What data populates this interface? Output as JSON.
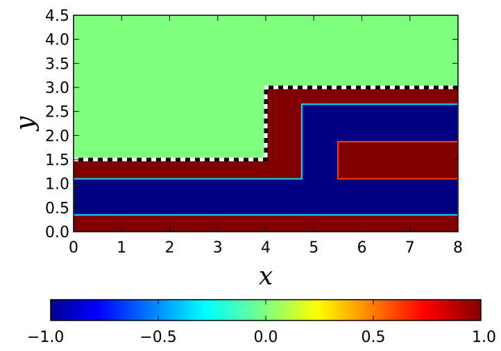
{
  "chart_data": {
    "type": "heatmap",
    "title": "",
    "xlabel": "x",
    "ylabel": "y",
    "xlim": [
      0,
      8
    ],
    "ylim": [
      0,
      4.5
    ],
    "xticks": [
      0,
      1,
      2,
      3,
      4,
      5,
      6,
      7,
      8
    ],
    "yticks": [
      0.0,
      0.5,
      1.0,
      1.5,
      2.0,
      2.5,
      3.0,
      3.5,
      4.0,
      4.5
    ],
    "xtick_labels": [
      "0",
      "1",
      "2",
      "3",
      "4",
      "5",
      "6",
      "7",
      "8"
    ],
    "ytick_labels": [
      "0.0",
      "0.5",
      "1.0",
      "1.5",
      "2.0",
      "2.5",
      "3.0",
      "3.5",
      "4.0",
      "4.5"
    ],
    "colormap": "jet",
    "grid": false,
    "regions": [
      {
        "value": 0.0,
        "description": "background field",
        "polygon": [
          [
            0,
            0
          ],
          [
            8,
            0
          ],
          [
            8,
            4.5
          ],
          [
            0,
            4.5
          ]
        ]
      },
      {
        "value": 1.0,
        "description": "stepped layer",
        "polygon": [
          [
            0,
            0
          ],
          [
            8,
            0
          ],
          [
            8,
            3.0
          ],
          [
            4.0,
            3.0
          ],
          [
            4.0,
            1.5
          ],
          [
            0,
            1.5
          ]
        ]
      },
      {
        "value": -1.0,
        "description": "channel",
        "polygon": [
          [
            0,
            0.35
          ],
          [
            8,
            0.35
          ],
          [
            8,
            2.65
          ],
          [
            4.75,
            2.65
          ],
          [
            4.75,
            1.1
          ],
          [
            0,
            1.1
          ]
        ]
      },
      {
        "value": 1.0,
        "description": "inner bar",
        "polygon": [
          [
            5.5,
            1.1
          ],
          [
            8,
            1.1
          ],
          [
            8,
            1.87
          ],
          [
            5.5,
            1.87
          ]
        ]
      }
    ],
    "dashed_boundary": {
      "color": "#ffffff",
      "points": [
        [
          0,
          1.5
        ],
        [
          4.0,
          1.5
        ],
        [
          4.0,
          3.0
        ],
        [
          8,
          3.0
        ]
      ]
    },
    "colorbar": {
      "orientation": "horizontal",
      "range": [
        -1.0,
        1.0
      ],
      "ticks": [
        -1.0,
        -0.5,
        0.0,
        0.5,
        1.0
      ],
      "tick_labels": [
        "−1.0",
        "−0.5",
        "0.0",
        "0.5",
        "1.0"
      ]
    },
    "colors": {
      "low": "#00008f",
      "mid": "#80ff80",
      "high": "#800000"
    }
  }
}
